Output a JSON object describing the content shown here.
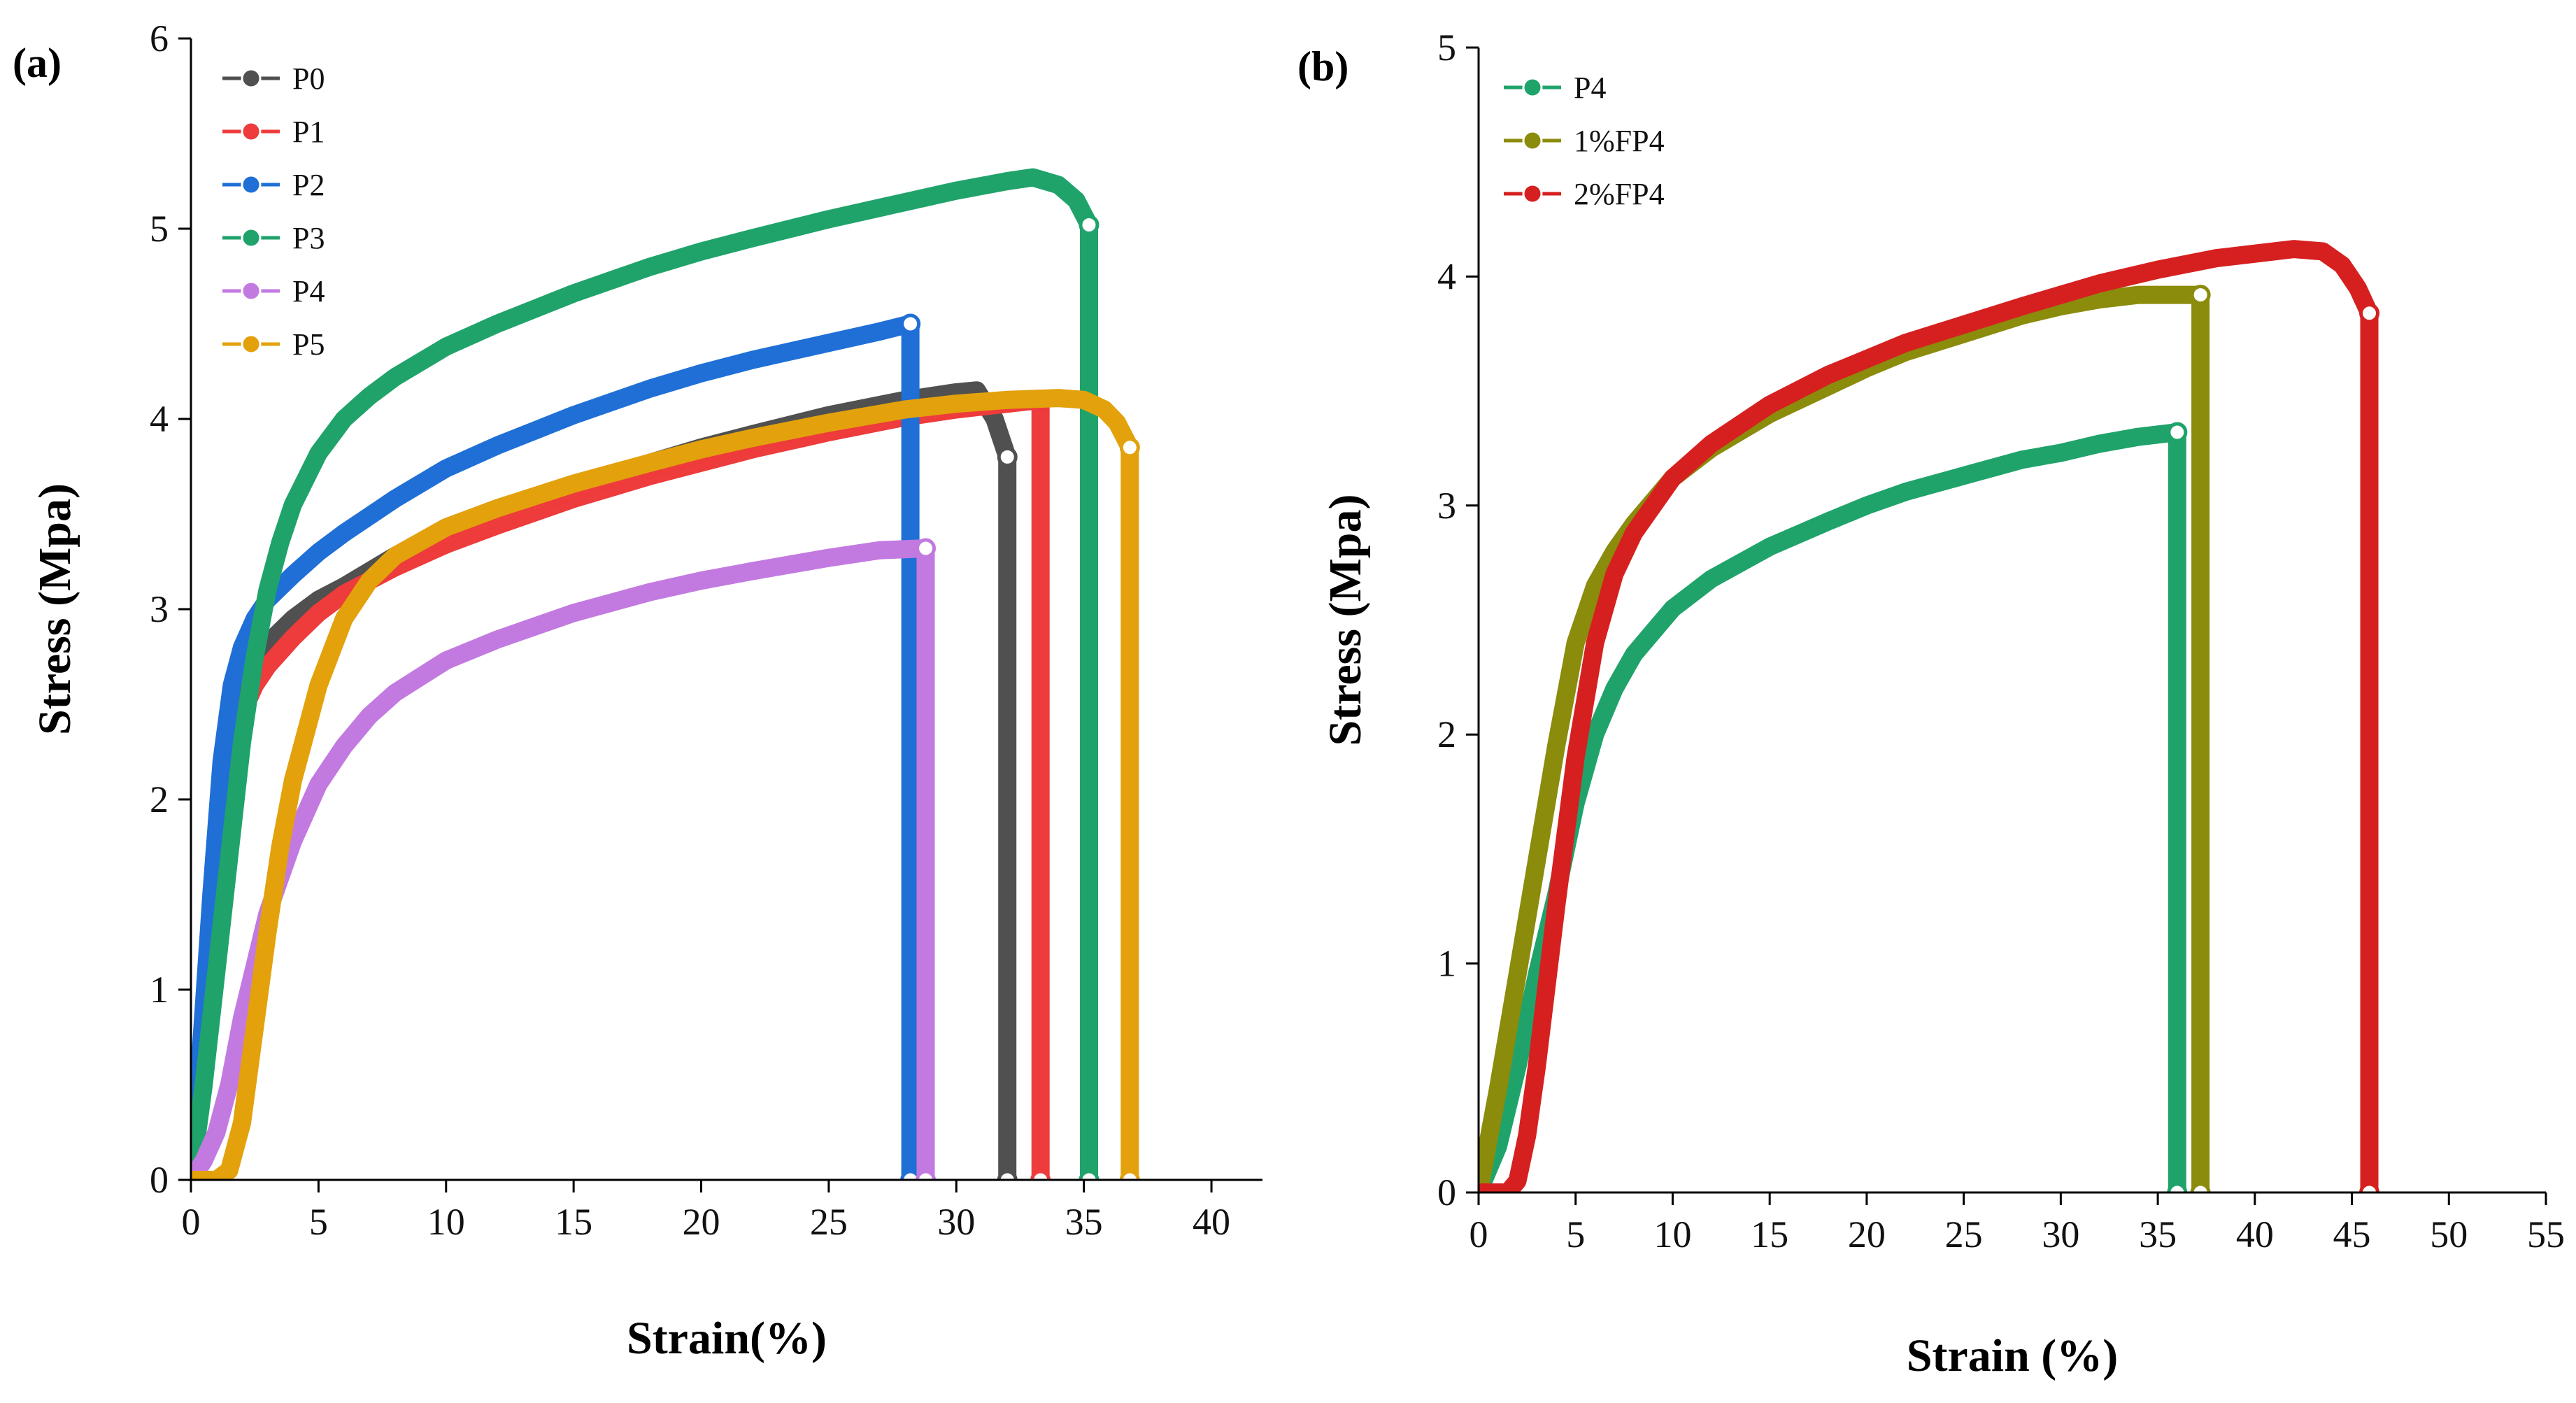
{
  "chart_data": [
    {
      "panel_label": "(a)",
      "type": "line",
      "xlabel": "Strain(%)",
      "ylabel": "Stress (Mpa)",
      "xlim": [
        0,
        42
      ],
      "ylim": [
        0,
        6
      ],
      "xticks": [
        0,
        5,
        10,
        15,
        20,
        25,
        30,
        35,
        40
      ],
      "yticks": [
        0,
        1,
        2,
        3,
        4,
        5,
        6
      ],
      "legend_position": "top-left",
      "series": [
        {
          "name": "P0",
          "color": "#505050",
          "x": [
            0,
            0.3,
            0.6,
            1.0,
            1.5,
            2.0,
            2.5,
            3.0,
            4.0,
            5.0,
            6.0,
            8.0,
            10.0,
            12.0,
            15.0,
            18.0,
            20.0,
            22.0,
            25.0,
            28.0,
            30.0,
            30.8,
            31.5,
            32.0,
            32.0
          ],
          "y": [
            0,
            0.4,
            0.9,
            1.5,
            2.1,
            2.5,
            2.7,
            2.82,
            2.95,
            3.05,
            3.12,
            3.28,
            3.4,
            3.5,
            3.64,
            3.77,
            3.85,
            3.92,
            4.02,
            4.1,
            4.14,
            4.15,
            4.0,
            3.8,
            0
          ]
        },
        {
          "name": "P1",
          "color": "#ee3b3b",
          "x": [
            0,
            0.5,
            1.0,
            1.5,
            2.0,
            2.5,
            3.0,
            4.0,
            5.0,
            6.0,
            8.0,
            10.0,
            12.0,
            15.0,
            18.0,
            20.0,
            22.0,
            25.0,
            28.0,
            30.0,
            32.0,
            33.3,
            33.3
          ],
          "y": [
            0,
            0.6,
            1.5,
            2.1,
            2.45,
            2.6,
            2.7,
            2.85,
            2.98,
            3.08,
            3.22,
            3.34,
            3.44,
            3.58,
            3.7,
            3.77,
            3.84,
            3.93,
            4.01,
            4.05,
            4.08,
            4.1,
            0
          ]
        },
        {
          "name": "P2",
          "color": "#1f6fd6",
          "x": [
            0,
            0.4,
            0.8,
            1.2,
            1.6,
            2.0,
            2.5,
            3.0,
            4.0,
            5.0,
            6.0,
            8.0,
            10.0,
            12.0,
            15.0,
            18.0,
            20.0,
            22.0,
            25.0,
            27.0,
            28.2,
            28.2
          ],
          "y": [
            0,
            0.7,
            1.5,
            2.2,
            2.6,
            2.8,
            2.95,
            3.05,
            3.18,
            3.3,
            3.4,
            3.58,
            3.74,
            3.86,
            4.02,
            4.16,
            4.24,
            4.31,
            4.4,
            4.46,
            4.5,
            0
          ]
        },
        {
          "name": "P3",
          "color": "#1fa36b",
          "x": [
            0,
            0.5,
            1.0,
            1.5,
            2.0,
            2.5,
            3.0,
            3.5,
            4.0,
            5.0,
            6.0,
            7.0,
            8.0,
            10.0,
            12.0,
            15.0,
            18.0,
            20.0,
            22.0,
            25.0,
            28.0,
            30.0,
            32.0,
            33.0,
            34.0,
            34.7,
            35.2,
            35.2
          ],
          "y": [
            0,
            0.5,
            1.1,
            1.7,
            2.3,
            2.75,
            3.1,
            3.35,
            3.55,
            3.82,
            4.0,
            4.12,
            4.22,
            4.38,
            4.5,
            4.66,
            4.8,
            4.88,
            4.95,
            5.05,
            5.14,
            5.2,
            5.25,
            5.27,
            5.23,
            5.15,
            5.02,
            0
          ]
        },
        {
          "name": "P4",
          "color": "#c27ae0",
          "x": [
            0,
            0.5,
            1.0,
            1.5,
            2.0,
            3.0,
            4.0,
            5.0,
            6.0,
            7.0,
            8.0,
            10.0,
            12.0,
            15.0,
            18.0,
            20.0,
            22.0,
            25.0,
            27.0,
            28.8,
            28.8
          ],
          "y": [
            0,
            0.1,
            0.25,
            0.5,
            0.85,
            1.4,
            1.78,
            2.08,
            2.28,
            2.44,
            2.56,
            2.73,
            2.84,
            2.98,
            3.09,
            3.15,
            3.2,
            3.27,
            3.31,
            3.32,
            0
          ]
        },
        {
          "name": "P5",
          "color": "#e3a10c",
          "x": [
            0,
            1.0,
            1.5,
            2.0,
            2.5,
            3.0,
            3.5,
            4.0,
            5.0,
            6.0,
            7.0,
            8.0,
            10.0,
            12.0,
            15.0,
            18.0,
            20.0,
            22.0,
            25.0,
            28.0,
            30.0,
            32.0,
            34.0,
            35.0,
            35.8,
            36.3,
            36.8,
            36.8
          ],
          "y": [
            0,
            0,
            0.05,
            0.3,
            0.8,
            1.3,
            1.75,
            2.1,
            2.6,
            2.95,
            3.15,
            3.28,
            3.43,
            3.53,
            3.66,
            3.77,
            3.84,
            3.9,
            3.98,
            4.05,
            4.08,
            4.1,
            4.11,
            4.1,
            4.05,
            3.98,
            3.85,
            0
          ]
        }
      ]
    },
    {
      "panel_label": "(b)",
      "type": "line",
      "xlabel": "Strain (%)",
      "ylabel": "Stress (Mpa)",
      "xlim": [
        0,
        55
      ],
      "ylim": [
        0,
        5
      ],
      "xticks": [
        0,
        5,
        10,
        15,
        20,
        25,
        30,
        35,
        40,
        45,
        50,
        55
      ],
      "yticks": [
        0,
        1,
        2,
        3,
        4,
        5
      ],
      "legend_position": "top-left",
      "series": [
        {
          "name": "P4",
          "color": "#1fa36b",
          "x": [
            0,
            1.0,
            2.0,
            3.0,
            4.0,
            5.0,
            6.0,
            7.0,
            8.0,
            10.0,
            12.0,
            15.0,
            18.0,
            20.0,
            22.0,
            25.0,
            28.0,
            30.0,
            32.0,
            34.0,
            36.0,
            36.0
          ],
          "y": [
            0,
            0.2,
            0.55,
            0.95,
            1.3,
            1.7,
            2.0,
            2.2,
            2.35,
            2.55,
            2.68,
            2.82,
            2.93,
            3.0,
            3.06,
            3.13,
            3.2,
            3.23,
            3.27,
            3.3,
            3.32,
            0
          ]
        },
        {
          "name": "1%FP4",
          "color": "#8b8b0c",
          "x": [
            0,
            1.0,
            2.0,
            3.0,
            4.0,
            5.0,
            6.0,
            7.0,
            8.0,
            10.0,
            12.0,
            15.0,
            18.0,
            20.0,
            22.0,
            25.0,
            28.0,
            30.0,
            32.0,
            34.0,
            36.0,
            37.2,
            37.2
          ],
          "y": [
            0,
            0.45,
            0.95,
            1.45,
            1.95,
            2.4,
            2.65,
            2.8,
            2.92,
            3.12,
            3.25,
            3.4,
            3.52,
            3.6,
            3.67,
            3.75,
            3.83,
            3.87,
            3.9,
            3.92,
            3.92,
            3.92,
            0
          ]
        },
        {
          "name": "2%FP4",
          "color": "#d62020",
          "x": [
            0,
            1.5,
            2.0,
            2.5,
            3.0,
            3.5,
            4.0,
            5.0,
            6.0,
            7.0,
            8.0,
            10.0,
            12.0,
            15.0,
            18.0,
            20.0,
            22.0,
            25.0,
            28.0,
            30.0,
            32.0,
            35.0,
            38.0,
            40.0,
            42.0,
            43.5,
            44.5,
            45.3,
            45.9,
            45.9
          ],
          "y": [
            0,
            0,
            0.05,
            0.25,
            0.55,
            0.9,
            1.25,
            1.9,
            2.4,
            2.7,
            2.88,
            3.12,
            3.27,
            3.44,
            3.57,
            3.64,
            3.71,
            3.79,
            3.87,
            3.92,
            3.97,
            4.03,
            4.08,
            4.1,
            4.12,
            4.11,
            4.05,
            3.95,
            3.84,
            0
          ]
        }
      ]
    }
  ]
}
